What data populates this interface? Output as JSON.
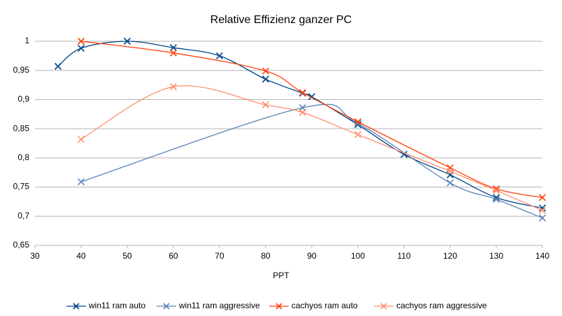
{
  "chart_data": {
    "type": "line",
    "title": "Relative Effizienz ganzer PC",
    "x_label": "PPT",
    "xlim": [
      30,
      140
    ],
    "xticks": [
      30,
      40,
      50,
      60,
      70,
      80,
      90,
      100,
      110,
      120,
      130,
      140
    ],
    "ylim": [
      0.65,
      1
    ],
    "yticks": [
      {
        "value": 0.65,
        "label": "0,65"
      },
      {
        "value": 0.7,
        "label": "0,7"
      },
      {
        "value": 0.75,
        "label": "0,75"
      },
      {
        "value": 0.8,
        "label": "0,8"
      },
      {
        "value": 0.85,
        "label": "0,85"
      },
      {
        "value": 0.9,
        "label": "0,9"
      },
      {
        "value": 0.95,
        "label": "0,95"
      },
      1
    ],
    "grid": true,
    "smooth": true,
    "legend": "bottom",
    "series": [
      {
        "name": "win11 ram auto",
        "color": "#004586",
        "x": [
          35,
          40,
          50,
          60,
          70,
          80,
          88,
          90,
          100,
          110,
          120,
          130,
          140
        ],
        "values": [
          0.957,
          0.988,
          1.0,
          0.989,
          0.975,
          0.935,
          0.911,
          0.905,
          0.857,
          0.806,
          0.771,
          0.732,
          0.714
        ]
      },
      {
        "name": "win11 ram aggressive",
        "color": "#5b85b8",
        "x": [
          40,
          88,
          100,
          120,
          130,
          140
        ],
        "values": [
          0.759,
          0.886,
          0.859,
          0.757,
          0.729,
          0.697
        ]
      },
      {
        "name": "cachyos ram auto",
        "color": "#ff420e",
        "x": [
          40,
          60,
          80,
          88,
          100,
          120,
          130,
          140
        ],
        "values": [
          1.0,
          0.98,
          0.949,
          0.912,
          0.862,
          0.783,
          0.747,
          0.732
        ]
      },
      {
        "name": "cachyos ram aggressive",
        "color": "#ff8f6e",
        "x": [
          40,
          60,
          80,
          88,
          100,
          120,
          130,
          140
        ],
        "values": [
          0.832,
          0.922,
          0.891,
          0.878,
          0.84,
          0.777,
          0.744,
          0.71
        ]
      }
    ]
  }
}
